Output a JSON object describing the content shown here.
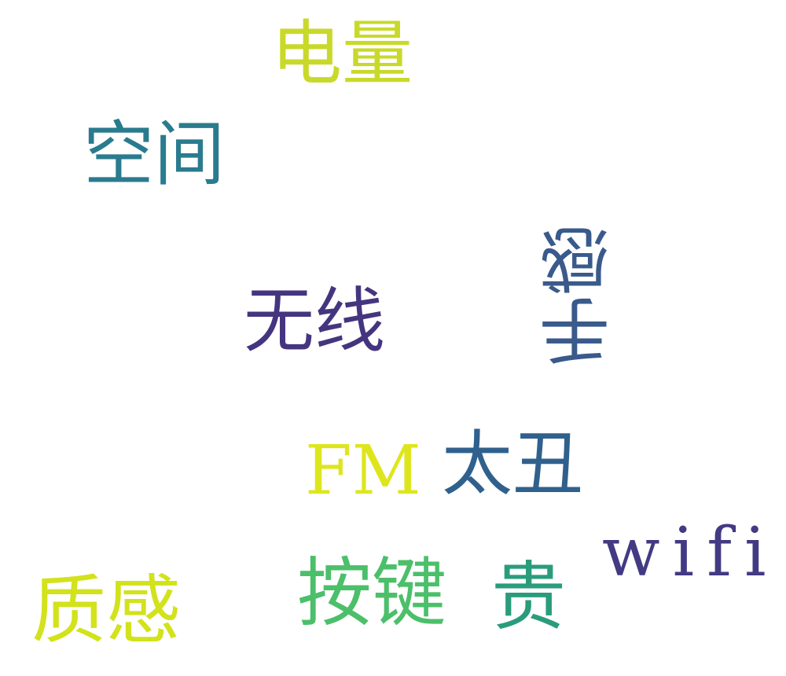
{
  "words": [
    {
      "text": "电量",
      "color": "#c8d92a"
    },
    {
      "text": "空间",
      "color": "#2a7b8e"
    },
    {
      "text": "手感",
      "color": "#3a5a8c"
    },
    {
      "text": "无线",
      "color": "#45357f"
    },
    {
      "text": "FM",
      "color": "#dde61c"
    },
    {
      "text": "太丑",
      "color": "#30618d"
    },
    {
      "text": "wifi",
      "color": "#433a83"
    },
    {
      "text": "质感",
      "color": "#d2e21b"
    },
    {
      "text": "按键",
      "color": "#4cbf6a"
    },
    {
      "text": "贵",
      "color": "#2a9c7c"
    }
  ]
}
